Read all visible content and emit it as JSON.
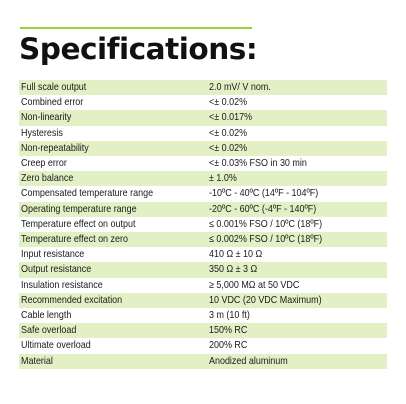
{
  "title": "Specifications:",
  "specifications": [
    {
      "label": "Full scale output",
      "value": "2.0 mV/ V nom."
    },
    {
      "label": "Combined error",
      "value": "<± 0.02%"
    },
    {
      "label": "Non-linearity",
      "value": "<± 0.017%"
    },
    {
      "label": "Hysteresis",
      "value": "<± 0.02%"
    },
    {
      "label": "Non-repeatability",
      "value": "<± 0.02%"
    },
    {
      "label": "Creep error",
      "value": "<± 0.03% FSO in 30 min"
    },
    {
      "label": "Zero balance",
      "value": "± 1.0%"
    },
    {
      "label": "Compensated temperature range",
      "value": "-10ºC - 40ºC (14ºF - 104ºF)"
    },
    {
      "label": "Operating temperature range",
      "value": "-20ºC - 60ºC (-4ºF - 140ºF)"
    },
    {
      "label": "Temperature effect on output",
      "value": "≤ 0.001% FSO / 10ºC (18ºF)"
    },
    {
      "label": "Temperature effect on zero",
      "value": "≤ 0.002% FSO / 10ºC (18ºF)"
    },
    {
      "label": "Input resistance",
      "value": "410 Ω ± 10 Ω"
    },
    {
      "label": "Output resistance",
      "value": "350 Ω ± 3 Ω"
    },
    {
      "label": "Insulation resistance",
      "value": "≥ 5,000 MΩ at 50 VDC"
    },
    {
      "label": "Recommended excitation",
      "value": "10 VDC (20 VDC Maximum)"
    },
    {
      "label": "Cable length",
      "value": "3 m (10 ft)"
    },
    {
      "label": "Safe overload",
      "value": "150%  RC"
    },
    {
      "label": "Ultimate overload",
      "value": "200%  RC"
    },
    {
      "label": "Material",
      "value": "Anodized aluminum"
    }
  ],
  "colors": {
    "accent_rule": "#9ad13a",
    "row_shade": "#e3efc4",
    "text": "#1a1a1a"
  }
}
